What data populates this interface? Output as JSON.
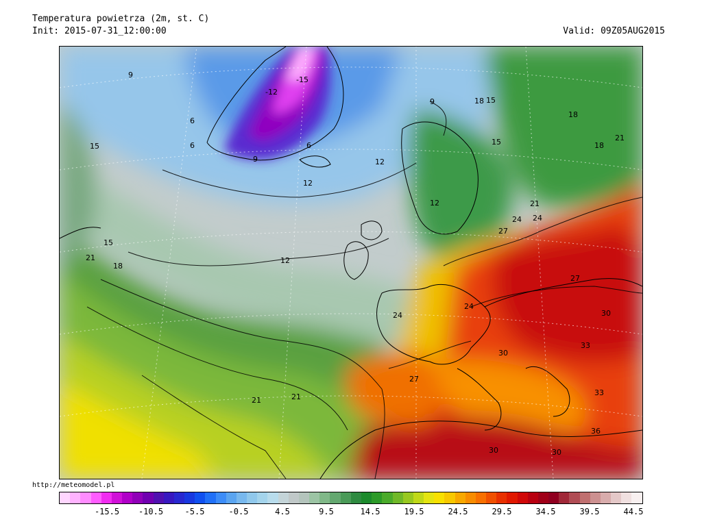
{
  "header": {
    "title": "Temperatura powietrza (2m, st. C)",
    "init": "Init: 2015-07-31_12:00:00",
    "valid": "Valid: 09Z05AUG2015"
  },
  "credit": "http://meteomodel.pl",
  "legend": {
    "colors": [
      "#ffd6ff",
      "#ffb3ff",
      "#ff8cff",
      "#ff5cff",
      "#f02cf0",
      "#d010d8",
      "#b000c8",
      "#9000b8",
      "#7000b0",
      "#5010b0",
      "#3818c0",
      "#2828d0",
      "#1838e0",
      "#1050f0",
      "#2070f8",
      "#3c8cf8",
      "#5aa4f0",
      "#78b8ee",
      "#90c8ec",
      "#a4d4ec",
      "#b8dcec",
      "#c4d4d8",
      "#c0c8c8",
      "#b4c4bc",
      "#9cc4a4",
      "#80b888",
      "#64a870",
      "#4a9a58",
      "#2e8a40",
      "#1c8a2c",
      "#2c9a28",
      "#4aaa2a",
      "#70b828",
      "#98c820",
      "#c0d818",
      "#e4e410",
      "#f8e000",
      "#f8c800",
      "#f8a800",
      "#f88c00",
      "#f87000",
      "#f05000",
      "#e83000",
      "#e01800",
      "#d00808",
      "#b80010",
      "#a00018",
      "#900020",
      "#a02838",
      "#b04c54",
      "#c07070",
      "#cc9090",
      "#d8acac",
      "#e4c8c8",
      "#f0e0e0",
      "#f8f0f0"
    ],
    "labels": [
      "-15.5",
      "-10.5",
      "-5.5",
      "-0.5",
      "4.5",
      "9.5",
      "14.5",
      "19.5",
      "24.5",
      "29.5",
      "34.5",
      "39.5",
      "44.5"
    ]
  },
  "map": {
    "contour_labels": [
      {
        "text": "9"
      },
      {
        "text": "6"
      },
      {
        "text": "-15"
      },
      {
        "text": "-12"
      },
      {
        "text": "6"
      },
      {
        "text": "6"
      },
      {
        "text": "9"
      },
      {
        "text": "15"
      },
      {
        "text": "9"
      },
      {
        "text": "12"
      },
      {
        "text": "12"
      },
      {
        "text": "12"
      },
      {
        "text": "12"
      },
      {
        "text": "15"
      },
      {
        "text": "18"
      },
      {
        "text": "21"
      },
      {
        "text": "15"
      },
      {
        "text": "18"
      },
      {
        "text": "18"
      },
      {
        "text": "21"
      },
      {
        "text": "24"
      },
      {
        "text": "21"
      },
      {
        "text": "24"
      },
      {
        "text": "27"
      },
      {
        "text": "27"
      },
      {
        "text": "24"
      },
      {
        "text": "24"
      },
      {
        "text": "27"
      },
      {
        "text": "30"
      },
      {
        "text": "30"
      },
      {
        "text": "30"
      },
      {
        "text": "33"
      },
      {
        "text": "36"
      },
      {
        "text": "30"
      },
      {
        "text": "33"
      },
      {
        "text": "21"
      },
      {
        "text": "15"
      },
      {
        "text": "18"
      },
      {
        "text": "21"
      }
    ]
  }
}
